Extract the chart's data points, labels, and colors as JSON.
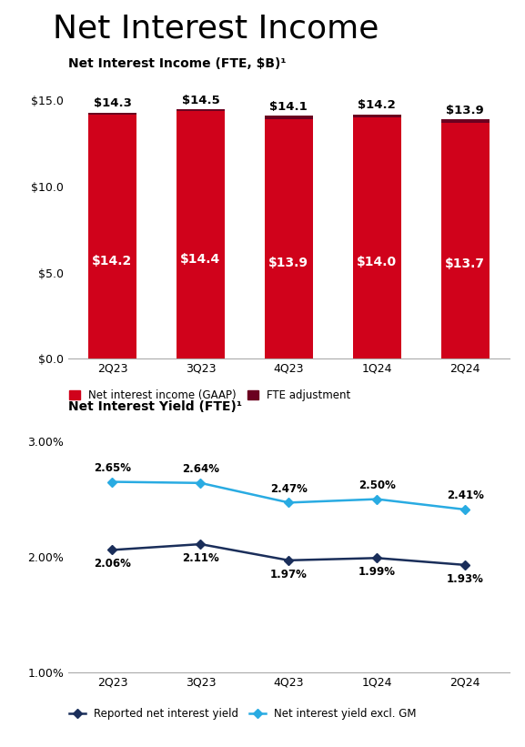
{
  "main_title": "Net Interest Income",
  "bar_subtitle": "Net Interest Income (FTE, $B)¹",
  "line_subtitle": "Net Interest Yield (FTE)¹",
  "categories": [
    "2Q23",
    "3Q23",
    "4Q23",
    "1Q24",
    "2Q24"
  ],
  "gaap_values": [
    14.3,
    14.5,
    14.1,
    14.2,
    13.9
  ],
  "gaap_labels": [
    "$14.3",
    "$14.5",
    "$14.1",
    "$14.2",
    "$13.9"
  ],
  "fte_values": [
    14.2,
    14.4,
    13.9,
    14.0,
    13.7
  ],
  "fte_labels": [
    "$14.2",
    "$14.4",
    "$13.9",
    "$14.0",
    "$13.7"
  ],
  "bar_color_gaap": "#d0021b",
  "bar_color_fte": "#6b0020",
  "reported_yield": [
    2.06,
    2.11,
    1.97,
    1.99,
    1.93
  ],
  "reported_labels": [
    "2.06%",
    "2.11%",
    "1.97%",
    "1.99%",
    "1.93%"
  ],
  "excl_gm_yield": [
    2.65,
    2.64,
    2.47,
    2.5,
    2.41
  ],
  "excl_gm_labels": [
    "2.65%",
    "2.64%",
    "2.47%",
    "2.50%",
    "2.41%"
  ],
  "reported_color": "#1a2e5a",
  "excl_gm_color": "#29abe2",
  "bar_ylim": [
    0,
    16.5
  ],
  "bar_yticks": [
    0.0,
    5.0,
    10.0,
    15.0
  ],
  "bar_ytick_labels": [
    "$0.0",
    "$5.0",
    "$10.0",
    "$15.0"
  ],
  "line_ylim": [
    1.0,
    3.2
  ],
  "line_yticks": [
    1.0,
    2.0,
    3.0
  ],
  "line_ytick_labels": [
    "1.00%",
    "2.00%",
    "3.00%"
  ],
  "legend_gaap": "Net interest income (GAAP)",
  "legend_fte": "FTE adjustment",
  "legend_reported": "Reported net interest yield",
  "legend_excl": "Net interest yield excl. GM",
  "background_color": "#ffffff",
  "title_fontsize": 26,
  "subtitle_fontsize": 10,
  "bar_label_fontsize": 9.5,
  "bar_inner_fontsize": 10,
  "tick_fontsize": 9,
  "line_label_fontsize": 8.5,
  "legend_fontsize": 8.5
}
